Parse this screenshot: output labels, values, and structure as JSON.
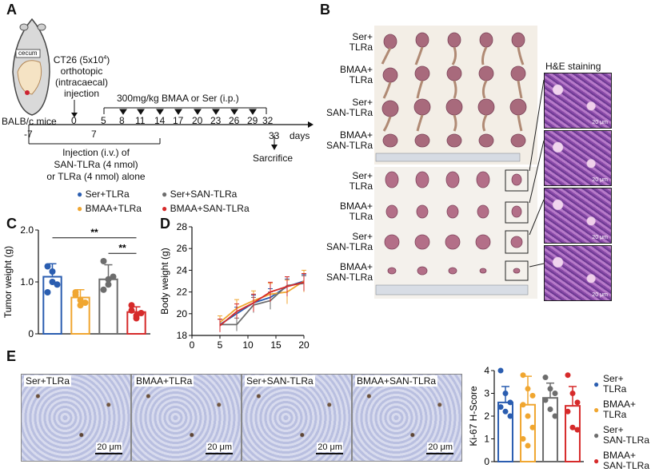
{
  "panels": {
    "A": "A",
    "B": "B",
    "C": "C",
    "D": "D",
    "E": "E"
  },
  "panelA": {
    "mouse_label": "cecum",
    "tumor_inoculation": [
      "CT26 (5x10",
      "4",
      ")",
      "orthotopic",
      "(intracaecal)",
      "injection"
    ],
    "treatment": "300mg/kg BMAA or Ser (i.p.)",
    "strain": "BALB/c mice",
    "timeline_days": [
      "-7",
      "0",
      "5",
      "8",
      "11",
      "14",
      "17",
      "20",
      "23",
      "26",
      "29",
      "32",
      "33"
    ],
    "timeline_mid_labels": [
      "7"
    ],
    "days_label": "days",
    "sacrifice": "Sarcrifice",
    "injection_note": [
      "Injection  (i.v.) of",
      "SAN-TLRa (4 nmol)",
      "or TLRa (4 nmol) alone"
    ]
  },
  "panelB": {
    "top_groups": [
      [
        "Ser+",
        "TLRa"
      ],
      [
        "BMAA+",
        "TLRa"
      ],
      [
        "Ser+",
        "SAN-TLRa"
      ],
      [
        "BMAA+",
        "SAN-TLRa"
      ]
    ],
    "bottom_groups": [
      [
        "Ser+",
        "TLRa"
      ],
      [
        "BMAA+",
        "TLRa"
      ],
      [
        "Ser+",
        "SAN-TLRa"
      ],
      [
        "BMAA+",
        "SAN-TLRa"
      ]
    ],
    "he_title": "H&E staining"
  },
  "legendCD": {
    "items": [
      {
        "label": "Ser+TLRa",
        "color": "#2a5db0"
      },
      {
        "label": "Ser+SAN-TLRa",
        "color": "#6d6d6d"
      },
      {
        "label": "BMAA+TLRa",
        "color": "#f0a630"
      },
      {
        "label": "BMAA+SAN-TLRa",
        "color": "#d62a2a"
      }
    ]
  },
  "panelC": {
    "ylabel": "Tumor weight (g)",
    "sig1": "**",
    "sig2": "**"
  },
  "panelD": {
    "ylabel": "Body weight (g)"
  },
  "panelE": {
    "images": [
      {
        "label": "Ser+TLRa",
        "scale": "20 μm"
      },
      {
        "label": "BMAA+TLRa",
        "scale": "20 μm"
      },
      {
        "label": "Ser+SAN-TLRa",
        "scale": "20 μm"
      },
      {
        "label": "BMAA+SAN-TLRa",
        "scale": "20 μm"
      }
    ],
    "ylabel": "Ki-67 H-Score",
    "legend": [
      {
        "lines": [
          "Ser+",
          "TLRa"
        ],
        "color": "#2a5db0"
      },
      {
        "lines": [
          "BMAA+",
          "TLRa"
        ],
        "color": "#f0a630"
      },
      {
        "lines": [
          "Ser+",
          "SAN-TLRa"
        ],
        "color": "#6d6d6d"
      },
      {
        "lines": [
          "BMAA+",
          "SAN-TLRa"
        ],
        "color": "#d62a2a"
      }
    ]
  },
  "chart_data": [
    {
      "type": "bar",
      "panel": "C",
      "ylabel": "Tumor weight (g)",
      "ylim": [
        0,
        2.0
      ],
      "yticks": [
        "0",
        "1.0",
        "2.0"
      ],
      "categories": [
        "Ser+TLRa",
        "BMAA+TLRa",
        "Ser+SAN-TLRa",
        "BMAA+SAN-TLRa"
      ],
      "colors": [
        "#2a5db0",
        "#f0a630",
        "#6d6d6d",
        "#d62a2a"
      ],
      "values": [
        1.1,
        0.7,
        1.05,
        0.42
      ],
      "errors": [
        0.25,
        0.15,
        0.28,
        0.1
      ],
      "points": [
        [
          1.3,
          1.0,
          0.95,
          0.8,
          1.2
        ],
        [
          0.75,
          0.55,
          0.6,
          0.8,
          0.65
        ],
        [
          1.4,
          0.95,
          1.1,
          0.85,
          1.05
        ],
        [
          0.55,
          0.3,
          0.4,
          0.45,
          0.35
        ]
      ]
    },
    {
      "type": "line",
      "panel": "D",
      "ylabel": "Body weight (g)",
      "ylim": [
        18,
        28
      ],
      "xlim": [
        0,
        20
      ],
      "yticks": [
        "18",
        "20",
        "22",
        "24",
        "26",
        "28"
      ],
      "xticks": [
        "0",
        "5",
        "10",
        "15",
        "20"
      ],
      "x": [
        5,
        8,
        11,
        14,
        17,
        20
      ],
      "series": [
        {
          "color": "#2a5db0",
          "values": [
            19.0,
            20.0,
            21.0,
            21.5,
            22.5,
            23.0
          ],
          "errors": [
            0.5,
            0.6,
            0.7,
            0.8,
            0.7,
            0.6
          ]
        },
        {
          "color": "#f0a630",
          "values": [
            19.2,
            20.5,
            21.2,
            21.8,
            22.0,
            23.0
          ],
          "errors": [
            0.6,
            0.8,
            0.9,
            1.0,
            1.1,
            1.0
          ]
        },
        {
          "color": "#6d6d6d",
          "values": [
            19.0,
            19.0,
            20.8,
            21.2,
            22.6,
            22.8
          ],
          "errors": [
            0.5,
            0.6,
            0.7,
            0.8,
            0.8,
            0.7
          ]
        },
        {
          "color": "#d62a2a",
          "values": [
            18.9,
            20.2,
            21.0,
            22.0,
            22.5,
            22.9
          ],
          "errors": [
            0.6,
            0.7,
            0.8,
            0.9,
            0.9,
            0.8
          ]
        }
      ]
    },
    {
      "type": "bar",
      "panel": "E",
      "ylabel": "Ki-67 H-Score",
      "ylim": [
        0,
        4
      ],
      "yticks": [
        "0",
        "1",
        "2",
        "3",
        "4"
      ],
      "categories": [
        "Ser+TLRa",
        "BMAA+TLRa",
        "Ser+SAN-TLRa",
        "BMAA+SAN-TLRa"
      ],
      "colors": [
        "#2a5db0",
        "#f0a630",
        "#6d6d6d",
        "#d62a2a"
      ],
      "values": [
        2.6,
        2.5,
        2.8,
        2.45
      ],
      "errors": [
        0.7,
        1.25,
        0.65,
        0.85
      ],
      "points": [
        [
          4.0,
          3.0,
          2.6,
          2.4,
          2.2,
          2.0
        ],
        [
          3.8,
          3.2,
          2.9,
          2.5,
          2.0,
          1.5,
          1.0,
          0.7
        ],
        [
          3.7,
          3.2,
          3.0,
          2.7,
          2.3,
          2.0
        ],
        [
          3.8,
          3.0,
          2.6,
          2.2,
          1.5,
          1.4
        ]
      ]
    }
  ]
}
